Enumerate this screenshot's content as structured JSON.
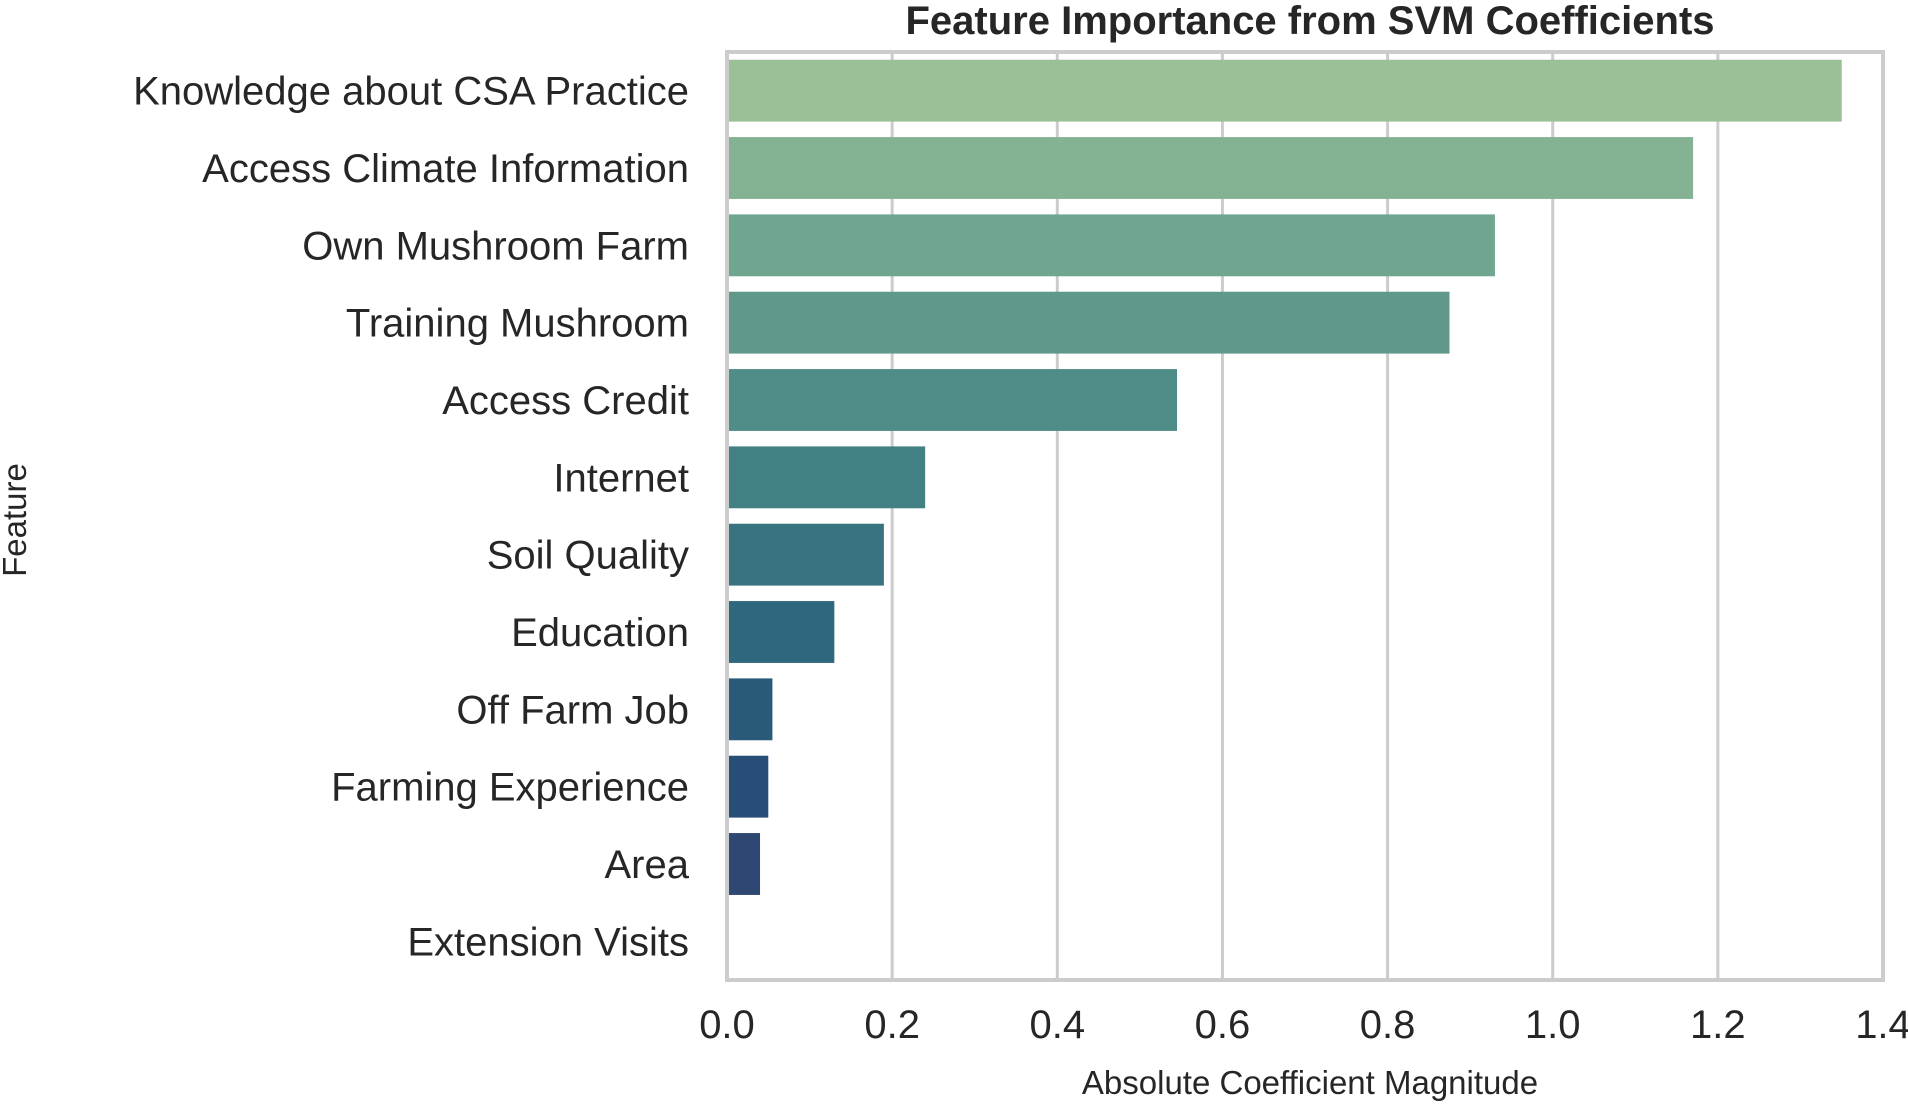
{
  "chart_data": {
    "type": "bar",
    "orientation": "horizontal",
    "title": "Feature Importance from SVM Coefficients",
    "xlabel": "Absolute Coefficient Magnitude",
    "ylabel": "Feature",
    "categories": [
      "Knowledge about CSA Practice",
      "Access Climate Information",
      "Own Mushroom Farm",
      "Training Mushroom",
      "Access Credit",
      "Internet",
      "Soil Quality",
      "Education",
      "Off Farm Job",
      "Farming Experience",
      "Area",
      "Extension Visits"
    ],
    "values": [
      1.35,
      1.17,
      0.93,
      0.875,
      0.545,
      0.24,
      0.19,
      0.13,
      0.055,
      0.05,
      0.04,
      0.0
    ],
    "xlim": [
      0.0,
      1.4
    ],
    "xticks": [
      "0.0",
      "0.2",
      "0.4",
      "0.6",
      "0.8",
      "1.0",
      "1.2",
      "1.4"
    ],
    "grid": "vertical",
    "colors": [
      "#9bbf97",
      "#86b294",
      "#70a58f",
      "#60998b",
      "#508c88",
      "#438083",
      "#38737f",
      "#2f677d",
      "#2a5a7a",
      "#284d77",
      "#2f4773",
      "#333f6d"
    ],
    "frame_color": "#cccccc",
    "grid_color": "#cccccc"
  }
}
